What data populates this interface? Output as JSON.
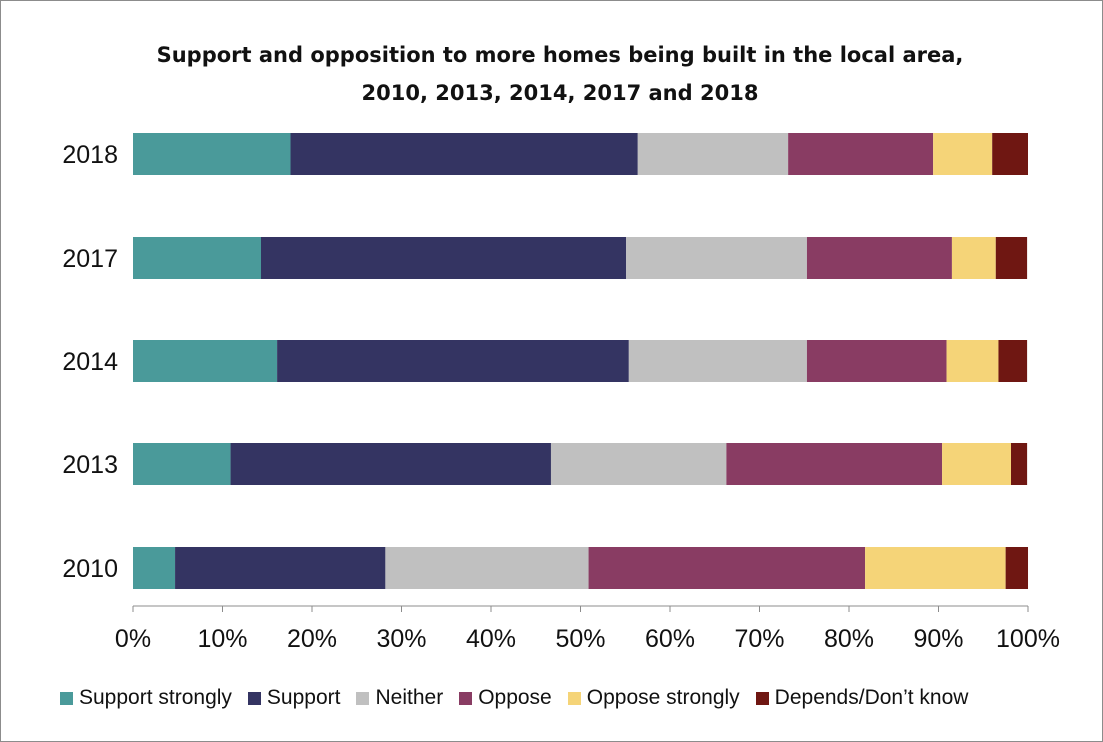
{
  "chart_data": {
    "type": "bar",
    "orientation": "horizontal",
    "stacked": true,
    "title_lines": [
      "Support and opposition to more homes being built in the local area,",
      "2010, 2013, 2014, 2017 and 2018"
    ],
    "categories": [
      "2018",
      "2017",
      "2014",
      "2013",
      "2010"
    ],
    "xlim": [
      0,
      100
    ],
    "x_ticks": [
      "0%",
      "10%",
      "20%",
      "30%",
      "40%",
      "50%",
      "60%",
      "70%",
      "80%",
      "90%",
      "100%"
    ],
    "grid": false,
    "legend_position": "bottom",
    "series": [
      {
        "name": "Support strongly",
        "color": "#4a9a9a",
        "values": [
          17.6,
          14.3,
          16.1,
          10.9,
          4.7
        ]
      },
      {
        "name": "Support",
        "color": "#343462",
        "values": [
          38.8,
          40.8,
          39.3,
          35.8,
          23.5
        ]
      },
      {
        "name": "Neither",
        "color": "#c0c0c0",
        "values": [
          16.8,
          20.2,
          19.9,
          19.6,
          22.7
        ]
      },
      {
        "name": "Oppose",
        "color": "#893c63",
        "values": [
          16.2,
          16.2,
          15.6,
          24.1,
          30.9
        ]
      },
      {
        "name": "Oppose strongly",
        "color": "#f5d478",
        "values": [
          6.6,
          4.9,
          5.8,
          7.7,
          15.7
        ]
      },
      {
        "name": "Depends/Don’t know",
        "color": "#6f1712",
        "values": [
          4.0,
          3.5,
          3.2,
          1.8,
          2.5
        ]
      }
    ]
  }
}
